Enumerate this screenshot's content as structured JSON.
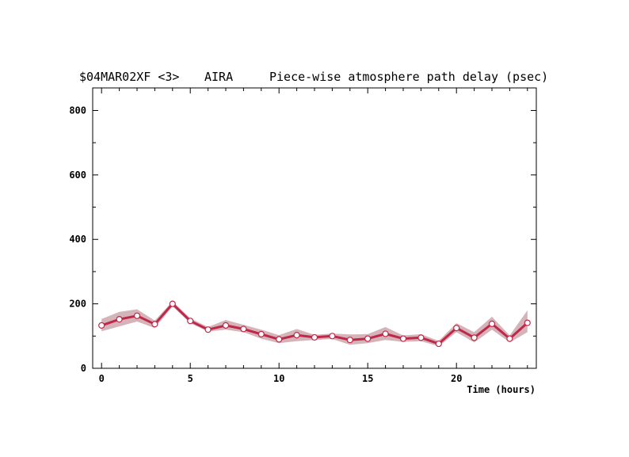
{
  "header": {
    "experiment": "$04MAR02XF <3>",
    "station": "AIRA",
    "title": "Piece-wise atmosphere path delay (psec)"
  },
  "chart_data": {
    "type": "line",
    "title": "Piece-wise atmosphere path delay (psec)",
    "xlabel": "Time (hours)",
    "ylabel": "",
    "xlim": [
      -0.5,
      24.5
    ],
    "ylim": [
      0,
      870
    ],
    "x_ticks": [
      0,
      5,
      10,
      15,
      20
    ],
    "y_ticks": [
      0,
      200,
      400,
      600,
      800
    ],
    "x_minor_step": 1,
    "y_minor_step": 100,
    "grid": false,
    "line_color": "#c0284a",
    "band_color": "#d4b4b8",
    "series": [
      {
        "x": [
          0,
          1,
          2,
          3,
          4,
          5,
          6,
          7,
          8,
          9,
          10,
          11,
          12,
          13,
          14,
          15,
          16,
          17,
          18,
          19,
          20,
          21,
          22,
          23,
          24
        ],
        "values": [
          133,
          152,
          163,
          137,
          200,
          147,
          120,
          133,
          122,
          106,
          90,
          103,
          96,
          100,
          88,
          92,
          107,
          92,
          95,
          76,
          125,
          95,
          138,
          92,
          141
        ],
        "band_low": [
          115,
          130,
          145,
          125,
          192,
          140,
          114,
          120,
          112,
          92,
          78,
          84,
          88,
          91,
          73,
          78,
          88,
          82,
          84,
          68,
          112,
          80,
          120,
          80,
          112
        ],
        "band_high": [
          153,
          175,
          183,
          148,
          208,
          155,
          128,
          150,
          135,
          120,
          103,
          122,
          104,
          108,
          105,
          106,
          128,
          102,
          106,
          85,
          140,
          112,
          160,
          102,
          180
        ]
      }
    ]
  }
}
